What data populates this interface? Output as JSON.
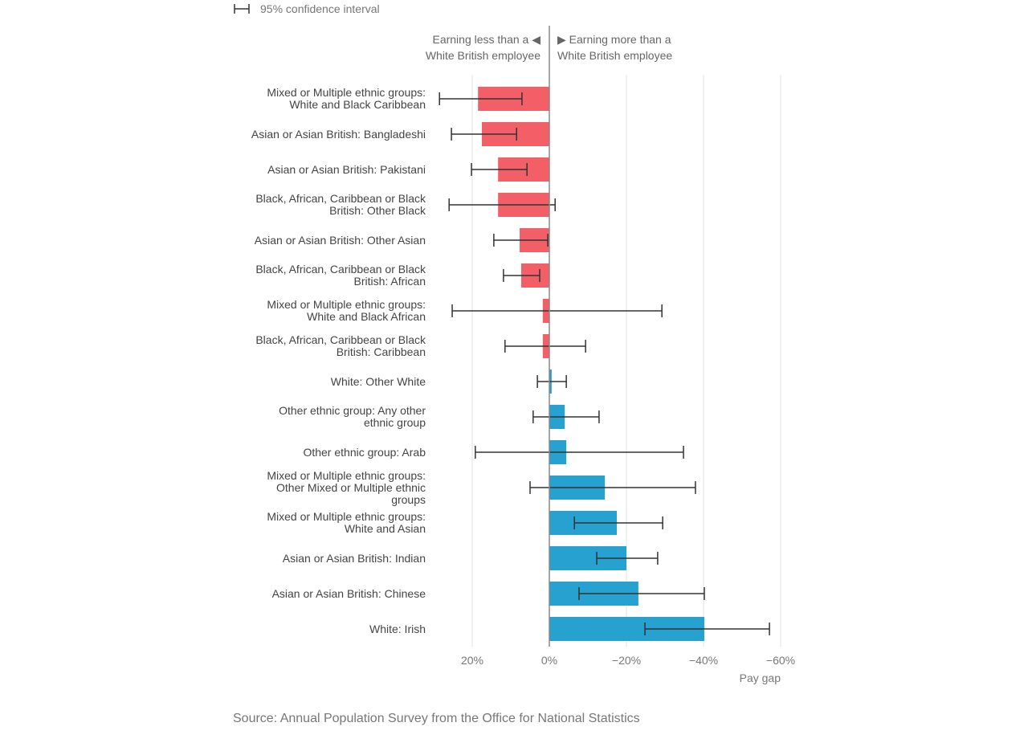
{
  "chart_data": {
    "type": "bar",
    "orientation": "horizontal",
    "legend": "95% confidence interval",
    "annotations": [
      "Earning less than a ◀\nWhite British employee",
      "▶ Earning more than a\nWhite British employee"
    ],
    "xlabel": "Pay gap",
    "source": "Source: Annual Population Survey from the Office for National Statistics",
    "categories": [
      "Mixed or Multiple ethnic groups:\nWhite and Black Caribbean",
      "Asian or Asian British: Bangladeshi",
      "Asian or Asian British: Pakistani",
      "Black, African, Caribbean or Black\nBritish: Other Black",
      "Asian or Asian British: Other Asian",
      "Black, African, Caribbean or Black\nBritish: African",
      "Mixed or Multiple ethnic groups:\nWhite and Black African",
      "Black, African, Caribbean or Black\nBritish: Caribbean",
      "White: Other White",
      "Other ethnic group: Any other\nethnic group",
      "Other ethnic group: Arab",
      "Mixed or Multiple ethnic groups:\nOther Mixed or Multiple ethnic\ngroups",
      "Mixed or Multiple ethnic groups:\nWhite and Asian",
      "Asian or Asian British: Indian",
      "Asian or Asian British: Chinese",
      "White: Irish"
    ],
    "values": [
      18.5,
      17.5,
      13.3,
      13.3,
      7.7,
      7.3,
      1.7,
      1.7,
      -0.6,
      -4.0,
      -4.4,
      -14.4,
      -17.5,
      -20.0,
      -23.1,
      -40.2
    ],
    "ci_low": [
      7.1,
      8.5,
      5.8,
      -1.5,
      0.4,
      2.5,
      -29.2,
      -9.4,
      -4.4,
      -12.9,
      -34.8,
      -37.9,
      -29.4,
      -28.1,
      -40.2,
      -57.1
    ],
    "ci_high": [
      28.5,
      25.4,
      20.2,
      26.0,
      14.4,
      11.9,
      25.2,
      11.5,
      3.1,
      4.2,
      19.2,
      5.0,
      -6.5,
      -12.3,
      -7.7,
      -24.8
    ],
    "colors": [
      "#f25f67",
      "#f25f67",
      "#f25f67",
      "#f25f67",
      "#f25f67",
      "#f25f67",
      "#f25f67",
      "#f25f67",
      "#27a1cf",
      "#27a1cf",
      "#27a1cf",
      "#27a1cf",
      "#27a1cf",
      "#27a1cf",
      "#27a1cf",
      "#27a1cf"
    ],
    "xlim": [
      30,
      -60
    ],
    "xticks": [
      {
        "value": 20,
        "label": "20%"
      },
      {
        "value": 0,
        "label": "0%"
      },
      {
        "value": -20,
        "label": "−20%"
      },
      {
        "value": -40,
        "label": "−40%"
      },
      {
        "value": -60,
        "label": "−60%"
      }
    ],
    "grid": true
  }
}
